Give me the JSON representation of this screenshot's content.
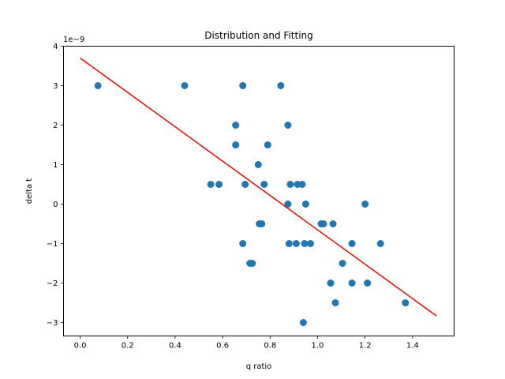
{
  "chart_data": {
    "type": "scatter",
    "title": "Distribution and Fitting",
    "xlabel": "q ratio",
    "ylabel": "delta t",
    "y_offset_label": "1e−9",
    "xlim": [
      -0.07,
      1.575
    ],
    "ylim": [
      -3.34,
      4.0
    ],
    "x_ticks": [
      0.0,
      0.2,
      0.4,
      0.6,
      0.8,
      1.0,
      1.2,
      1.4
    ],
    "x_tick_labels": [
      "0.0",
      "0.2",
      "0.4",
      "0.6",
      "0.8",
      "1.0",
      "1.2",
      "1.4"
    ],
    "y_ticks": [
      -3,
      -2,
      -1,
      0,
      1,
      2,
      3,
      4
    ],
    "y_tick_labels": [
      "−3",
      "−2",
      "−1",
      "0",
      "1",
      "2",
      "3",
      "4"
    ],
    "grid": false,
    "point_color": "#1f77b4",
    "line_color": "#ff0000",
    "points": [
      {
        "x": 0.075,
        "y": 3.0
      },
      {
        "x": 0.44,
        "y": 3.0
      },
      {
        "x": 0.685,
        "y": 3.0
      },
      {
        "x": 0.845,
        "y": 3.0
      },
      {
        "x": 0.655,
        "y": 2.0
      },
      {
        "x": 0.875,
        "y": 2.0
      },
      {
        "x": 0.655,
        "y": 1.5
      },
      {
        "x": 0.79,
        "y": 1.5
      },
      {
        "x": 0.75,
        "y": 1.0
      },
      {
        "x": 0.55,
        "y": 0.5
      },
      {
        "x": 0.585,
        "y": 0.5
      },
      {
        "x": 0.695,
        "y": 0.5
      },
      {
        "x": 0.775,
        "y": 0.5
      },
      {
        "x": 0.885,
        "y": 0.5
      },
      {
        "x": 0.915,
        "y": 0.5
      },
      {
        "x": 0.935,
        "y": 0.5
      },
      {
        "x": 0.875,
        "y": 0.0
      },
      {
        "x": 0.95,
        "y": 0.0
      },
      {
        "x": 1.2,
        "y": 0.0
      },
      {
        "x": 0.755,
        "y": -0.5
      },
      {
        "x": 0.765,
        "y": -0.5
      },
      {
        "x": 1.015,
        "y": -0.5
      },
      {
        "x": 1.025,
        "y": -0.5
      },
      {
        "x": 1.065,
        "y": -0.5
      },
      {
        "x": 0.685,
        "y": -1.0
      },
      {
        "x": 0.88,
        "y": -1.0
      },
      {
        "x": 0.91,
        "y": -1.0
      },
      {
        "x": 0.945,
        "y": -1.0
      },
      {
        "x": 0.97,
        "y": -1.0
      },
      {
        "x": 1.145,
        "y": -1.0
      },
      {
        "x": 1.265,
        "y": -1.0
      },
      {
        "x": 0.715,
        "y": -1.5
      },
      {
        "x": 0.725,
        "y": -1.5
      },
      {
        "x": 1.105,
        "y": -1.5
      },
      {
        "x": 1.055,
        "y": -2.0
      },
      {
        "x": 1.145,
        "y": -2.0
      },
      {
        "x": 1.21,
        "y": -2.0
      },
      {
        "x": 1.075,
        "y": -2.5
      },
      {
        "x": 1.37,
        "y": -2.5
      },
      {
        "x": 0.94,
        "y": -3.0
      }
    ],
    "fit_line": [
      {
        "x": 0.0,
        "y": 3.7
      },
      {
        "x": 1.5,
        "y": -2.83
      }
    ]
  }
}
